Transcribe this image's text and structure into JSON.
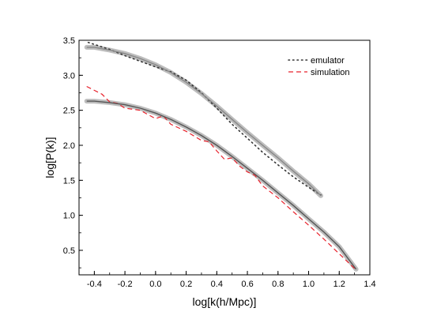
{
  "chart_data": {
    "type": "line",
    "xlabel": "log[k(h/Mpc)]",
    "ylabel": "log[P(k)]",
    "xlim": [
      -0.5,
      1.4
    ],
    "ylim": [
      0.15,
      3.5
    ],
    "xticks": [
      "-0.4",
      "-0.2",
      "0.0",
      "0.2",
      "0.4",
      "0.6",
      "0.8",
      "1.0",
      "1.2",
      "1.4"
    ],
    "yticks": [
      "0.5",
      "1.0",
      "1.5",
      "2.0",
      "2.5",
      "3.0",
      "3.5"
    ],
    "xtick_values": [
      -0.4,
      -0.2,
      0.0,
      0.2,
      0.4,
      0.6,
      0.8,
      1.0,
      1.2,
      1.4
    ],
    "ytick_values": [
      0.5,
      1.0,
      1.5,
      2.0,
      2.5,
      3.0,
      3.5
    ],
    "grid": false,
    "legend_position": "top-right",
    "legend": [
      {
        "label": "emulator",
        "style": "dotted",
        "color": "#333333"
      },
      {
        "label": "simulation",
        "style": "dashed",
        "color": "#e8202a"
      }
    ],
    "series": [
      {
        "style": "dotted",
        "color": "#333333",
        "x": [
          -0.44,
          -0.3,
          -0.2,
          -0.1,
          0.0,
          0.1,
          0.2,
          0.3,
          0.4,
          0.5,
          0.6,
          0.7,
          0.8,
          0.9,
          1.0,
          1.08
        ],
        "y": [
          3.47,
          3.37,
          3.28,
          3.2,
          3.12,
          3.05,
          2.93,
          2.75,
          2.53,
          2.3,
          2.1,
          1.9,
          1.72,
          1.55,
          1.4,
          1.29
        ]
      },
      {
        "style": "band",
        "color": "#888888",
        "x": [
          -0.45,
          -0.4,
          -0.3,
          -0.2,
          -0.1,
          0.0,
          0.1,
          0.2,
          0.3,
          0.4,
          0.5,
          0.6,
          0.7,
          0.8,
          0.9,
          1.0,
          1.08
        ],
        "y": [
          3.4,
          3.4,
          3.36,
          3.31,
          3.24,
          3.15,
          3.04,
          2.9,
          2.74,
          2.56,
          2.37,
          2.18,
          2.0,
          1.82,
          1.63,
          1.45,
          1.28
        ]
      },
      {
        "style": "dashed",
        "color": "#e8202a",
        "x": [
          -0.45,
          -0.35,
          -0.3,
          -0.25,
          -0.2,
          -0.1,
          0.0,
          0.05,
          0.1,
          0.2,
          0.3,
          0.35,
          0.4,
          0.45,
          0.5,
          0.55,
          0.6,
          0.65,
          0.7,
          0.8,
          0.9,
          1.0,
          1.1,
          1.2,
          1.3
        ],
        "y": [
          2.84,
          2.73,
          2.62,
          2.6,
          2.53,
          2.5,
          2.38,
          2.42,
          2.3,
          2.2,
          2.07,
          2.05,
          1.92,
          1.8,
          1.82,
          1.7,
          1.62,
          1.57,
          1.42,
          1.25,
          1.05,
          0.86,
          0.66,
          0.45,
          0.24
        ]
      },
      {
        "style": "band",
        "color": "#555555",
        "x": [
          -0.45,
          -0.4,
          -0.3,
          -0.2,
          -0.1,
          0.0,
          0.1,
          0.2,
          0.3,
          0.4,
          0.5,
          0.6,
          0.7,
          0.8,
          0.9,
          1.0,
          1.1,
          1.2,
          1.31
        ],
        "y": [
          2.63,
          2.63,
          2.61,
          2.58,
          2.53,
          2.46,
          2.37,
          2.26,
          2.14,
          2.0,
          1.84,
          1.67,
          1.5,
          1.32,
          1.14,
          0.95,
          0.76,
          0.55,
          0.23
        ]
      }
    ]
  }
}
